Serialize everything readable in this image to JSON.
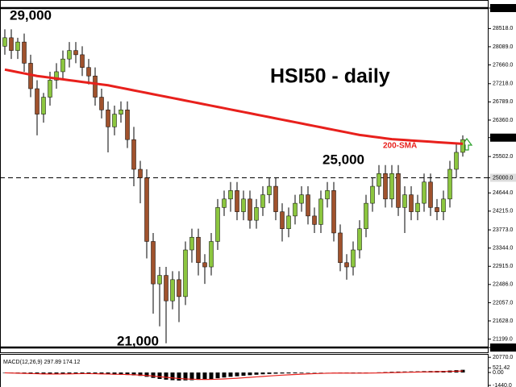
{
  "chart_data": [
    {
      "type": "candlestick",
      "title": "HSI50 - daily",
      "ylim": [
        20754,
        29190
      ],
      "yticks": [
        {
          "value": 29000,
          "label": "29000.0",
          "highlight": "dark"
        },
        {
          "value": 28518,
          "label": "28518.0"
        },
        {
          "value": 28089,
          "label": "28089.0"
        },
        {
          "value": 27660,
          "label": "27660.0"
        },
        {
          "value": 27218,
          "label": "27218.0"
        },
        {
          "value": 26789,
          "label": "26789.0"
        },
        {
          "value": 26360,
          "label": "26360.0"
        },
        {
          "value": 25946.3,
          "label": "25946.3",
          "highlight": "dark"
        },
        {
          "value": 25502,
          "label": "25502.0"
        },
        {
          "value": 25000,
          "label": "25000.0",
          "highlight": "light"
        },
        {
          "value": 24644,
          "label": "24644.0"
        },
        {
          "value": 24215,
          "label": "24215.0"
        },
        {
          "value": 23773,
          "label": "23773.0"
        },
        {
          "value": 23344,
          "label": "23344.0"
        },
        {
          "value": 22915,
          "label": "22915.0"
        },
        {
          "value": 22486,
          "label": "22486.0"
        },
        {
          "value": 22057,
          "label": "22057.0"
        },
        {
          "value": 21628,
          "label": "21628.0"
        },
        {
          "value": 21199,
          "label": "21199.0"
        },
        {
          "value": 21000,
          "label": "21000.0",
          "highlight": "dark"
        },
        {
          "value": 20770,
          "label": "20770.0"
        }
      ],
      "levels": [
        {
          "value": 29000,
          "label": "29,000",
          "style": "solid"
        },
        {
          "value": 25000,
          "label": "25,000",
          "style": "dashed"
        },
        {
          "value": 21000,
          "label": "21,000",
          "style": "solid"
        }
      ],
      "up_color": "#8cc63f",
      "down_color": "#a0522d",
      "open": [
        28100,
        28300,
        28000,
        28200,
        27700,
        27100,
        26500,
        26900,
        27300,
        27500,
        27800,
        28000,
        27900,
        27600,
        27400,
        26900,
        26600,
        26200,
        26500,
        26600,
        25900,
        25200,
        25000,
        23500,
        22500,
        22700,
        22100,
        22600,
        22200,
        23300,
        23600,
        23000,
        22900,
        23500,
        24300,
        24500,
        24700,
        24200,
        24500,
        24000,
        24300,
        24600,
        24800,
        24200,
        23800,
        24100,
        24400,
        24600,
        24100,
        23900,
        24500,
        24700,
        23700,
        23000,
        22900,
        23300,
        23800,
        24400,
        24800,
        25100,
        24500,
        25100,
        24300,
        24600,
        24200,
        24400,
        24900,
        24300,
        24200,
        24500,
        25200,
        25600
      ],
      "high": [
        28500,
        28500,
        28300,
        28400,
        27900,
        27300,
        27000,
        27500,
        27700,
        28000,
        28200,
        28200,
        28100,
        27800,
        27600,
        27100,
        26800,
        26700,
        26800,
        26800,
        26200,
        25400,
        25200,
        23700,
        22900,
        22900,
        22800,
        22800,
        23500,
        23800,
        23800,
        23200,
        23700,
        24500,
        24700,
        24900,
        24900,
        24700,
        24700,
        24500,
        24800,
        25000,
        25000,
        24400,
        24300,
        24600,
        24800,
        24800,
        24300,
        24700,
        24900,
        24900,
        23900,
        23200,
        23500,
        24000,
        24600,
        25000,
        25300,
        25300,
        25300,
        25300,
        24800,
        24800,
        24600,
        25100,
        25100,
        24500,
        24700,
        25400,
        25800,
        26000
      ],
      "low": [
        27900,
        27800,
        27800,
        27500,
        26900,
        26000,
        26300,
        26700,
        27100,
        27300,
        27600,
        27700,
        27400,
        27200,
        26700,
        26400,
        25600,
        26000,
        26300,
        25700,
        24800,
        24400,
        23100,
        21800,
        21500,
        21100,
        21900,
        21600,
        22000,
        23000,
        22700,
        22500,
        22700,
        23300,
        24100,
        24200,
        24000,
        24000,
        23800,
        23800,
        24100,
        24400,
        24000,
        23500,
        23600,
        23900,
        24200,
        23900,
        23700,
        23700,
        24300,
        23500,
        22800,
        22600,
        22700,
        23100,
        23600,
        24200,
        24600,
        24300,
        24300,
        24100,
        23700,
        24000,
        24000,
        24200,
        24100,
        24000,
        24000,
        24300,
        25000,
        25500
      ],
      "close": [
        28300,
        28000,
        28200,
        27700,
        27100,
        26500,
        26900,
        27300,
        27500,
        27800,
        28000,
        27900,
        27600,
        27400,
        26900,
        26600,
        26200,
        26500,
        26600,
        25900,
        25200,
        25000,
        23500,
        22500,
        22700,
        22100,
        22600,
        22200,
        23300,
        23600,
        23000,
        22900,
        23500,
        24300,
        24500,
        24700,
        24200,
        24500,
        24000,
        24300,
        24600,
        24800,
        24200,
        23800,
        24100,
        24400,
        24600,
        24100,
        23900,
        24500,
        24700,
        23700,
        23000,
        22900,
        23300,
        23800,
        24400,
        24800,
        25100,
        24500,
        25100,
        24300,
        24600,
        24200,
        24400,
        24900,
        24300,
        24200,
        24500,
        25200,
        25600,
        25900
      ],
      "series": [
        {
          "name": "200-SMA",
          "color": "#e8201c",
          "values": [
            27550,
            27520,
            27490,
            27460,
            27430,
            27400,
            27380,
            27360,
            27340,
            27320,
            27300,
            27280,
            27260,
            27240,
            27220,
            27200,
            27180,
            27150,
            27120,
            27090,
            27060,
            27030,
            27000,
            26970,
            26940,
            26910,
            26880,
            26850,
            26820,
            26790,
            26760,
            26730,
            26700,
            26670,
            26640,
            26610,
            26580,
            26550,
            26520,
            26490,
            26460,
            26430,
            26400,
            26370,
            26340,
            26310,
            26280,
            26250,
            26220,
            26190,
            26160,
            26130,
            26100,
            26070,
            26040,
            26010,
            25990,
            25970,
            25950,
            25930,
            25910,
            25900,
            25890,
            25880,
            25870,
            25860,
            25850,
            25840,
            25830,
            25820,
            25810,
            25800
          ]
        }
      ]
    },
    {
      "type": "bar",
      "title": "MACD(12,26,9) 297.89 174.12",
      "ylim": [
        -1440,
        1620
      ],
      "yticks": [
        521.42,
        {
          "value": 0,
          "label": "0.00"
        },
        {
          "value": -1440,
          "label": "-1440.0"
        }
      ],
      "series": [
        {
          "name": "MACD",
          "color": "#000000",
          "values": [
            -50,
            -80,
            -100,
            -120,
            -150,
            -180,
            -200,
            -190,
            -170,
            -150,
            -120,
            -100,
            -110,
            -130,
            -160,
            -190,
            -220,
            -240,
            -250,
            -280,
            -320,
            -380,
            -480,
            -600,
            -720,
            -800,
            -860,
            -900,
            -880,
            -860,
            -820,
            -780,
            -720,
            -640,
            -560,
            -480,
            -420,
            -360,
            -300,
            -250,
            -200,
            -160,
            -130,
            -110,
            -100,
            -90,
            -70,
            -50,
            -40,
            -30,
            -10,
            -20,
            -60,
            -90,
            -100,
            -80,
            -50,
            -20,
            20,
            50,
            80,
            100,
            110,
            120,
            130,
            150,
            160,
            170,
            180,
            220,
            260,
            300
          ]
        },
        {
          "name": "Signal",
          "color": "#e8201c",
          "values": [
            -40,
            -60,
            -80,
            -100,
            -120,
            -140,
            -160,
            -170,
            -170,
            -165,
            -155,
            -140,
            -130,
            -130,
            -140,
            -155,
            -175,
            -195,
            -210,
            -230,
            -255,
            -290,
            -340,
            -400,
            -470,
            -540,
            -610,
            -670,
            -720,
            -750,
            -770,
            -775,
            -770,
            -750,
            -720,
            -680,
            -640,
            -590,
            -540,
            -490,
            -440,
            -390,
            -345,
            -300,
            -260,
            -225,
            -190,
            -160,
            -130,
            -105,
            -85,
            -70,
            -65,
            -68,
            -72,
            -74,
            -70,
            -62,
            -50,
            -35,
            -18,
            0,
            15,
            30,
            45,
            60,
            75,
            90,
            105,
            120,
            140,
            170
          ]
        }
      ]
    }
  ]
}
